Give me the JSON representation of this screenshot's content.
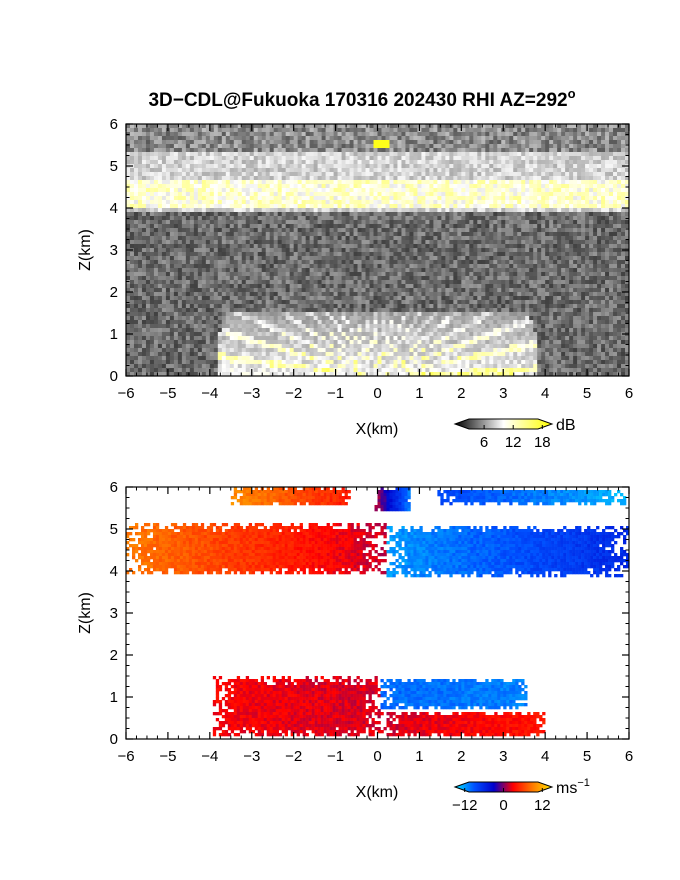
{
  "figure": {
    "title_main": "3D−CDL@Fukuoka 170316 202430 RHI AZ=292",
    "title_sup": "o"
  },
  "chart_data": [
    {
      "type": "heatmap",
      "name": "backscatter intensity",
      "xlabel": "X(km)",
      "ylabel": "Z(km)",
      "xlim": [
        -6,
        6
      ],
      "ylim": [
        0,
        6
      ],
      "xticks": [
        -6,
        -5,
        -4,
        -3,
        -2,
        -1,
        0,
        1,
        2,
        3,
        4,
        5,
        6
      ],
      "yticks": [
        0,
        1,
        2,
        3,
        4,
        5,
        6
      ],
      "colorbar": {
        "unit": "dB",
        "ticks": [
          6,
          12,
          18
        ],
        "range": [
          0,
          20
        ],
        "colors": [
          "#000000",
          "#ffffff",
          "#ffff00"
        ]
      },
      "features": [
        {
          "kind": "cloud-layer",
          "z_range": [
            3.9,
            5.3
          ],
          "x_range": [
            -6,
            6
          ],
          "level_db": 9
        },
        {
          "kind": "bright-spot",
          "x": 0.1,
          "z": 5.55,
          "level_db": 19
        },
        {
          "kind": "boundary-layer-fan",
          "z_top": 1.5,
          "x_range": [
            -3.8,
            3.8
          ],
          "level_db": 12
        }
      ]
    },
    {
      "type": "heatmap",
      "name": "radial velocity",
      "xlabel": "X(km)",
      "ylabel": "Z(km)",
      "xlim": [
        -6,
        6
      ],
      "ylim": [
        0,
        6
      ],
      "xticks": [
        -6,
        -5,
        -4,
        -3,
        -2,
        -1,
        0,
        1,
        2,
        3,
        4,
        5,
        6
      ],
      "yticks": [
        0,
        1,
        2,
        3,
        4,
        5,
        6
      ],
      "colorbar": {
        "unit": "ms",
        "unit_sup": "−1",
        "ticks_text": [
          "−12",
          "0",
          "12"
        ],
        "ticks": [
          -12,
          0,
          12
        ],
        "range": [
          -15,
          15
        ],
        "colors": [
          "#00e5ff",
          "#0050ff",
          "#0000cc",
          "#ff0000",
          "#ff7a00",
          "#ffe400"
        ]
      },
      "features": [
        {
          "kind": "layer",
          "z_range": [
            3.9,
            5.15
          ],
          "x_range": [
            -6,
            0.2
          ],
          "v_left": 9,
          "v_right": 1.5
        },
        {
          "kind": "layer",
          "z_range": [
            3.85,
            5.1
          ],
          "x_range": [
            0.2,
            6
          ],
          "v_left": -12,
          "v_right": -6
        },
        {
          "kind": "layer",
          "z_range": [
            5.6,
            5.95
          ],
          "x_range": [
            1.4,
            5.9
          ],
          "v_left": -8,
          "v_right": -13
        },
        {
          "kind": "layer",
          "z_range": [
            5.55,
            6.0
          ],
          "x_range": [
            -3.5,
            -0.6
          ],
          "v_left": 10,
          "v_right": 4
        },
        {
          "kind": "layer",
          "z_range": [
            5.4,
            6.0
          ],
          "x_range": [
            -0.1,
            0.8
          ],
          "v_left": 2,
          "v_right": -11
        },
        {
          "kind": "layer",
          "z_range": [
            0.05,
            1.5
          ],
          "x_range": [
            -3.9,
            0.1
          ],
          "v_left": 3,
          "v_right": 2
        },
        {
          "kind": "layer",
          "z_range": [
            0.7,
            1.45
          ],
          "x_range": [
            0.1,
            3.6
          ],
          "v_left": -10,
          "v_right": -11
        },
        {
          "kind": "layer",
          "z_range": [
            0.05,
            0.65
          ],
          "x_range": [
            0.1,
            4.0
          ],
          "v_left": 2,
          "v_right": 4
        }
      ]
    }
  ]
}
